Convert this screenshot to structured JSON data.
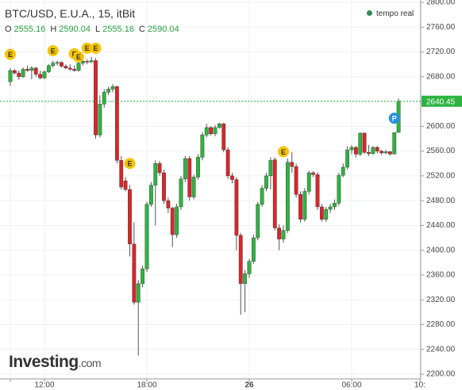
{
  "chart_data": {
    "type": "candlestick",
    "title": "BTC/USD, E.U.A., 15, itBit",
    "ohlc_labels": [
      "O",
      "H",
      "L",
      "C"
    ],
    "status": "tempo real",
    "brand": "Investing",
    "brand_suffix": ".com",
    "categories": [
      "",
      null,
      null,
      null,
      null,
      null,
      null,
      null,
      "12:00",
      null,
      null,
      null,
      null,
      null,
      null,
      null,
      null,
      null,
      null,
      null,
      null,
      null,
      null,
      null,
      null,
      null,
      null,
      null,
      null,
      null,
      null,
      null,
      "18:00",
      null,
      null,
      null,
      null,
      null,
      null,
      null,
      null,
      null,
      null,
      null,
      null,
      null,
      null,
      null,
      null,
      null,
      null,
      null,
      null,
      null,
      null,
      null,
      "26",
      null,
      null,
      null,
      null,
      null,
      null,
      null,
      null,
      null,
      null,
      null,
      null,
      null,
      null,
      null,
      null,
      null,
      null,
      null,
      null,
      null,
      null,
      null,
      "06:00",
      null,
      null,
      null,
      null,
      null,
      null,
      null,
      null,
      null,
      null,
      null,
      null,
      null,
      null,
      null,
      "10:"
    ],
    "open": [
      2672,
      2690,
      2686,
      2680,
      2692,
      2690,
      2694,
      2684,
      2678,
      2688,
      2698,
      2702,
      2703,
      2697,
      2694,
      2692,
      2690,
      2702,
      2705,
      2704,
      2706,
      2586,
      2636,
      2655,
      2660,
      2664,
      2545,
      2512,
      2498,
      2410,
      2316,
      2346,
      2370,
      2474,
      2505,
      2540,
      2525,
      2480,
      2468,
      2425,
      2470,
      2515,
      2548,
      2486,
      2518,
      2550,
      2586,
      2598,
      2588,
      2598,
      2604,
      2562,
      2520,
      2514,
      2424,
      2346,
      2362,
      2382,
      2420,
      2474,
      2500,
      2520,
      2546,
      2436,
      2418,
      2432,
      2542,
      2535,
      2490,
      2450,
      2495,
      2525,
      2522,
      2470,
      2450,
      2466,
      2470,
      2476,
      2521,
      2534,
      2562,
      2566,
      2555,
      2589,
      2558,
      2556,
      2566,
      2560,
      2557,
      2559,
      2555.16,
      2590.04,
      null,
      null,
      null,
      null,
      null
    ],
    "high": [
      2694,
      2692,
      2690,
      2695,
      2698,
      2697,
      2696,
      2690,
      2690,
      2700,
      2706,
      2706,
      2705,
      2700,
      2700,
      2698,
      2705,
      2710,
      2708,
      2712,
      2710,
      2650,
      2660,
      2664,
      2668,
      2666,
      2552,
      2518,
      2505,
      2445,
      2352,
      2375,
      2478,
      2510,
      2545,
      2544,
      2530,
      2485,
      2470,
      2475,
      2520,
      2552,
      2552,
      2522,
      2555,
      2590,
      2604,
      2600,
      2602,
      2606,
      2606,
      2566,
      2525,
      2518,
      2428,
      2368,
      2386,
      2425,
      2478,
      2505,
      2525,
      2550,
      2550,
      2442,
      2440,
      2548,
      2558,
      2540,
      2495,
      2500,
      2528,
      2528,
      2526,
      2475,
      2470,
      2475,
      2482,
      2525,
      2540,
      2568,
      2570,
      2568,
      2590,
      2590,
      2570,
      2568,
      2568,
      2562,
      2562,
      2560,
      2590.04,
      2645,
      null,
      null,
      null,
      null,
      null
    ],
    "low": [
      2665,
      2684,
      2675,
      2678,
      2688,
      2676,
      2680,
      2676,
      2676,
      2686,
      2695,
      2698,
      2695,
      2692,
      2690,
      2688,
      2688,
      2698,
      2700,
      2702,
      2580,
      2582,
      2630,
      2650,
      2655,
      2540,
      2498,
      2495,
      2390,
      2312,
      2230,
      2340,
      2365,
      2470,
      2440,
      2520,
      2475,
      2460,
      2405,
      2420,
      2465,
      2510,
      2480,
      2482,
      2514,
      2545,
      2582,
      2585,
      2584,
      2596,
      2558,
      2515,
      2508,
      2400,
      2296,
      2300,
      2355,
      2378,
      2416,
      2470,
      2495,
      2498,
      2432,
      2400,
      2412,
      2428,
      2525,
      2485,
      2445,
      2446,
      2490,
      2518,
      2465,
      2446,
      2446,
      2460,
      2465,
      2472,
      2518,
      2530,
      2555,
      2550,
      2552,
      2555,
      2552,
      2554,
      2556,
      2554,
      2555,
      2553,
      2555.16,
      2590.04,
      null,
      null,
      null,
      null,
      null
    ],
    "close": [
      2690,
      2686,
      2680,
      2692,
      2690,
      2694,
      2684,
      2678,
      2688,
      2698,
      2702,
      2703,
      2697,
      2694,
      2692,
      2690,
      2702,
      2705,
      2704,
      2706,
      2586,
      2636,
      2655,
      2660,
      2664,
      2545,
      2502,
      2498,
      2410,
      2316,
      2346,
      2370,
      2474,
      2505,
      2540,
      2525,
      2480,
      2468,
      2425,
      2470,
      2515,
      2548,
      2486,
      2518,
      2550,
      2586,
      2598,
      2588,
      2598,
      2604,
      2562,
      2520,
      2514,
      2424,
      2346,
      2362,
      2382,
      2420,
      2474,
      2500,
      2520,
      2545,
      2436,
      2418,
      2432,
      2542,
      2535,
      2490,
      2450,
      2495,
      2525,
      2522,
      2470,
      2450,
      2466,
      2470,
      2476,
      2521,
      2534,
      2562,
      2566,
      2555,
      2589,
      2558,
      2556,
      2566,
      2560,
      2557,
      2559,
      2555.16,
      2590.04,
      2640.45,
      null,
      null,
      null,
      null,
      null
    ],
    "up_color": "#2eb340",
    "down_color": "#d9262b",
    "markers": [
      {
        "label": "E",
        "index": 0,
        "price": 2716
      },
      {
        "label": "E",
        "index": 10,
        "price": 2722
      },
      {
        "label": "E",
        "index": 15,
        "price": 2717
      },
      {
        "label": "E",
        "index": 16,
        "price": 2712
      },
      {
        "label": "E",
        "index": 18,
        "price": 2726
      },
      {
        "label": "E",
        "index": 20,
        "price": 2726
      },
      {
        "label": "E",
        "index": 28,
        "price": 2540
      },
      {
        "label": "E",
        "index": 64,
        "price": 2559
      },
      {
        "label": "P",
        "index": 90,
        "price": 2613
      }
    ],
    "ylim": [
      2200,
      2800
    ],
    "yticks": [
      {
        "value": 2200,
        "label": "2200.00"
      },
      {
        "value": 2240,
        "label": "2240.00"
      },
      {
        "value": 2280,
        "label": "2280.00"
      },
      {
        "value": 2320,
        "label": "2320.00"
      },
      {
        "value": 2360,
        "label": "2360.00"
      },
      {
        "value": 2400,
        "label": "2400.00"
      },
      {
        "value": 2440,
        "label": "2440.00"
      },
      {
        "value": 2480,
        "label": "2480.00"
      },
      {
        "value": 2520,
        "label": "2520.00"
      },
      {
        "value": 2560,
        "label": "2560.00"
      },
      {
        "value": 2600,
        "label": "2600.00"
      },
      {
        "value": 2640,
        "label": "2640.00"
      },
      {
        "value": 2680,
        "label": "2680.00"
      },
      {
        "value": 2720,
        "label": "2720.00"
      },
      {
        "value": 2760,
        "label": "2760.00"
      },
      {
        "value": 2800,
        "label": "2800.00"
      }
    ],
    "grid": true
  }
}
